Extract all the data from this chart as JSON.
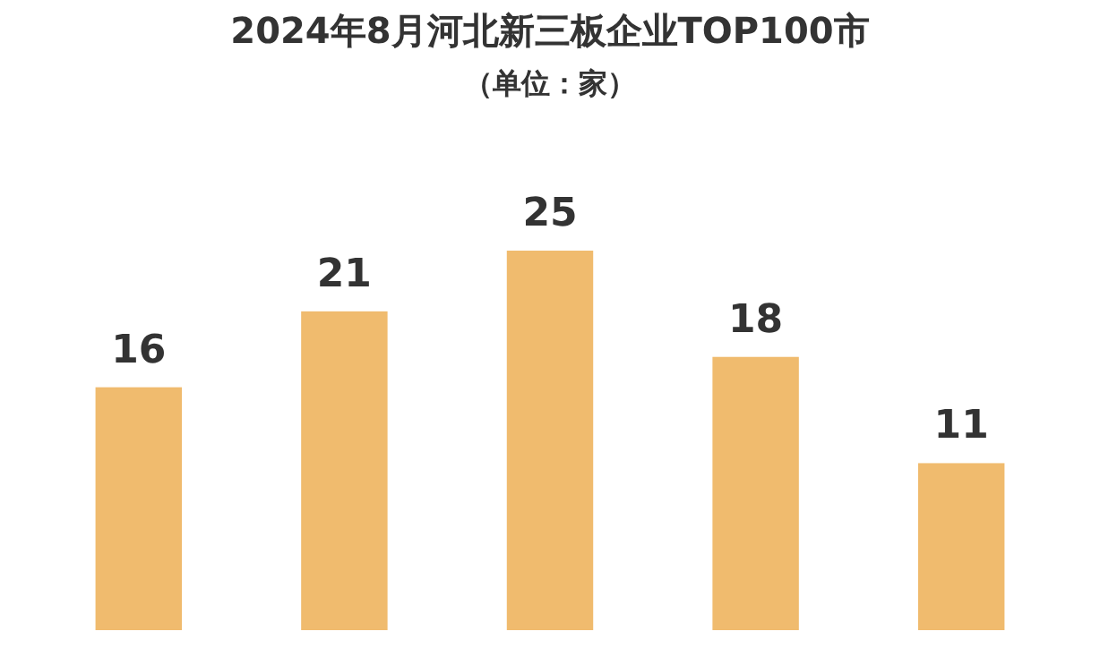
{
  "chart_data": {
    "type": "bar",
    "title": "2024年8月河北新三板企业TOP100市",
    "subtitle": "（单位：家）",
    "categories": [
      null,
      null,
      null,
      null,
      null
    ],
    "values": [
      16,
      21,
      25,
      18,
      11
    ],
    "color": "#f0bb6e",
    "data_labels": true
  }
}
